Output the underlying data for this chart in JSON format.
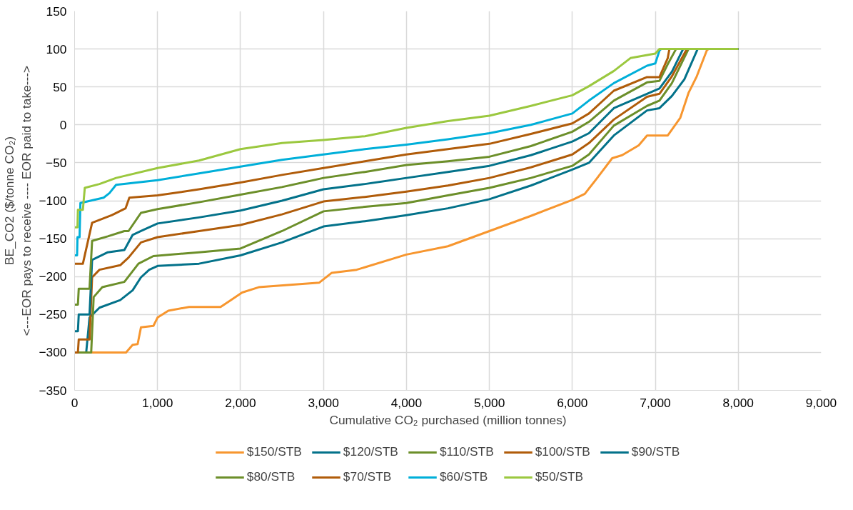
{
  "chart_data": {
    "type": "line",
    "xlabel": "Cumulative CO₂ purchased (million tonnes)",
    "ylabel": "BE_CO2 ($/tonne CO₂)\n<---EOR pays to receive ---- EOR paid to take--->",
    "xlim": [
      0,
      9000
    ],
    "xticks": [
      0,
      {
        "value": 1000,
        "label": "1,000"
      },
      {
        "value": 2000,
        "label": "2,000"
      },
      {
        "value": 3000,
        "label": "3,000"
      },
      {
        "value": 4000,
        "label": "4,000"
      },
      {
        "value": 5000,
        "label": "5,000"
      },
      {
        "value": 6000,
        "label": "6,000"
      },
      {
        "value": 7000,
        "label": "7,000"
      },
      {
        "value": 8000,
        "label": "8,000"
      },
      {
        "value": 9000,
        "label": "9,000"
      }
    ],
    "ylim": [
      -350,
      150
    ],
    "yticks": [
      -350,
      -300,
      -250,
      -200,
      -150,
      -100,
      -50,
      0,
      50,
      100,
      150
    ],
    "grid": true,
    "legend": "bottom",
    "marker": "none",
    "line_style": "solid",
    "series": [
      {
        "name": "$150/STB",
        "color": "#f7962f",
        "x": [
          0,
          620,
          700,
          760,
          800,
          950,
          1000,
          1130,
          1380,
          1760,
          1870,
          2020,
          2220,
          2950,
          3100,
          3400,
          4000,
          4500,
          5000,
          5500,
          6000,
          6150,
          6300,
          6480,
          6600,
          6800,
          6900,
          7150,
          7300,
          7400,
          7500,
          7620,
          7640,
          8000
        ],
        "values": [
          -300,
          -300,
          -290,
          -289,
          -267,
          -265,
          -254,
          -245,
          -240,
          -240,
          -232,
          -221,
          -214,
          -208,
          -195,
          -191,
          -171,
          -160,
          -140,
          -120,
          -99,
          -91,
          -70,
          -44,
          -40,
          -27,
          -14,
          -14,
          9,
          42,
          64,
          98,
          100,
          100
        ]
      },
      {
        "name": "$120/STB",
        "color": "#03728a",
        "x": [
          0,
          140,
          180,
          300,
          550,
          700,
          800,
          900,
          1000,
          1500,
          2000,
          2500,
          3000,
          3500,
          4000,
          4500,
          5000,
          5500,
          6000,
          6200,
          6500,
          6900,
          7050,
          7200,
          7350,
          7510,
          8000
        ],
        "values": [
          -300,
          -300,
          -254,
          -241,
          -231,
          -218,
          -201,
          -191,
          -186,
          -183,
          -172,
          -155,
          -134,
          -127,
          -119,
          -110,
          -98,
          -80,
          -59,
          -50,
          -14,
          19,
          22,
          38,
          60,
          100,
          100
        ]
      },
      {
        "name": "$110/STB",
        "color": "#6c8f2a",
        "x": [
          0,
          200,
          230,
          334,
          600,
          770,
          950,
          1500,
          2000,
          2500,
          3000,
          3500,
          4000,
          4500,
          5000,
          5500,
          6000,
          6200,
          6500,
          6900,
          7050,
          7200,
          7400,
          8000
        ],
        "values": [
          -300,
          -300,
          -227,
          -214,
          -207,
          -183,
          -173,
          -168,
          -163,
          -140,
          -114,
          -108,
          -103,
          -93,
          -83,
          -70,
          -54,
          -39,
          -1,
          25,
          32,
          55,
          100,
          100
        ]
      },
      {
        "name": "$100/STB",
        "color": "#b05c0a",
        "x": [
          0,
          40,
          50,
          180,
          211,
          300,
          550,
          650,
          800,
          1000,
          1500,
          2000,
          2500,
          3000,
          3500,
          4000,
          4500,
          5000,
          5500,
          6000,
          6200,
          6500,
          6900,
          7050,
          7200,
          7380,
          8000
        ],
        "values": [
          -300,
          -300,
          -283,
          -283,
          -201,
          -191,
          -185,
          -175,
          -155,
          -148,
          -140,
          -132,
          -118,
          -101,
          -95,
          -88,
          -80,
          -70,
          -56,
          -39,
          -24,
          7,
          37,
          41,
          64,
          100,
          100
        ]
      },
      {
        "name": "$90/STB",
        "color": "#03728a",
        "x": [
          0,
          40,
          50,
          180,
          211,
          400,
          600,
          700,
          800,
          1000,
          1500,
          2000,
          2500,
          3000,
          3500,
          4000,
          4500,
          5000,
          5500,
          6000,
          6200,
          6500,
          6900,
          7050,
          7200,
          7335,
          8000
        ],
        "values": [
          -272,
          -272,
          -250,
          -250,
          -178,
          -168,
          -165,
          -145,
          -140,
          -130,
          -122,
          -113,
          -100,
          -85,
          -78,
          -70,
          -62,
          -54,
          -40,
          -22,
          -11,
          22,
          41,
          48,
          70,
          100,
          100
        ]
      },
      {
        "name": "$80/STB",
        "color": "#6c8f2a",
        "x": [
          0,
          40,
          50,
          180,
          211,
          400,
          600,
          650,
          800,
          1000,
          1500,
          2000,
          2500,
          3000,
          3500,
          4000,
          4500,
          5000,
          5500,
          6000,
          6200,
          6500,
          6900,
          7050,
          7150,
          7250,
          8000
        ],
        "values": [
          -237,
          -237,
          -216,
          -216,
          -153,
          -147,
          -140,
          -140,
          -116,
          -111,
          -102,
          -92,
          -82,
          -70,
          -62,
          -53,
          -48,
          -42,
          -28,
          -9,
          4,
          32,
          56,
          58,
          80,
          100,
          100
        ]
      },
      {
        "name": "$70/STB",
        "color": "#b05c0a",
        "x": [
          0,
          100,
          211,
          450,
          615,
          660,
          1000,
          1500,
          2000,
          2500,
          3000,
          3500,
          4000,
          4500,
          5000,
          5500,
          6000,
          6200,
          6500,
          6900,
          7050,
          7150,
          7170,
          8000
        ],
        "values": [
          -183,
          -183,
          -129,
          -119,
          -110,
          -96,
          -93,
          -85,
          -76,
          -66,
          -57,
          -48,
          -39,
          -32,
          -25,
          -12,
          2,
          15,
          45,
          63,
          63,
          88,
          100,
          100
        ]
      },
      {
        "name": "$60/STB",
        "color": "#00afd9",
        "x": [
          0,
          30,
          35,
          60,
          70,
          350,
          420,
          500,
          1000,
          1500,
          2000,
          2500,
          3000,
          3500,
          4000,
          4500,
          5000,
          5500,
          6000,
          6200,
          6500,
          6900,
          7000,
          7050,
          7070,
          8000
        ],
        "values": [
          -172,
          -172,
          -148,
          -148,
          -103,
          -96,
          -90,
          -79,
          -73,
          -64,
          -55,
          -46,
          -39,
          -32,
          -26,
          -19,
          -11,
          0,
          15,
          32,
          55,
          78,
          81,
          98,
          100,
          100
        ]
      },
      {
        "name": "$50/STB",
        "color": "#9bc83f",
        "x": [
          0,
          35,
          40,
          100,
          123,
          300,
          500,
          1000,
          1500,
          2000,
          2500,
          3000,
          3500,
          4000,
          4500,
          5000,
          5500,
          6000,
          6200,
          6500,
          6700,
          7000,
          7050,
          8000
        ],
        "values": [
          -135,
          -135,
          -112,
          -112,
          -83,
          -78,
          -70,
          -57,
          -47,
          -32,
          -24,
          -20,
          -15,
          -4,
          5,
          12,
          25,
          39,
          51,
          71,
          88,
          94,
          100,
          100
        ]
      }
    ]
  }
}
